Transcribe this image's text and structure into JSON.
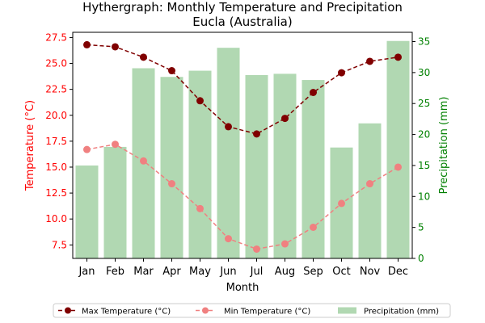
{
  "chart_data": {
    "type": "bar",
    "title": "Hythergraph: Monthly Temperature and Precipitation",
    "subtitle": "Eucla (Australia)",
    "xlabel": "Month",
    "ylabel_left": "Temperature (°C)",
    "ylabel_right": "Precipitation (mm)",
    "categories": [
      "Jan",
      "Feb",
      "Mar",
      "Apr",
      "May",
      "Jun",
      "Jul",
      "Aug",
      "Sep",
      "Oct",
      "Nov",
      "Dec"
    ],
    "ylim_left": [
      6.2,
      28.0
    ],
    "ylim_right": [
      0,
      36.5
    ],
    "yticks_left": [
      "7.5",
      "10.0",
      "12.5",
      "15.0",
      "17.5",
      "20.0",
      "22.5",
      "25.0",
      "27.5"
    ],
    "yticks_right": [
      "0",
      "5",
      "10",
      "15",
      "20",
      "25",
      "30",
      "35"
    ],
    "series": [
      {
        "name": "Max Temperature (°C)",
        "kind": "line",
        "axis": "left",
        "color": "#800000",
        "values": [
          26.8,
          26.6,
          25.6,
          24.3,
          21.4,
          18.9,
          18.2,
          19.7,
          22.2,
          24.1,
          25.2,
          25.6
        ]
      },
      {
        "name": "Min Temperature (°C)",
        "kind": "line",
        "axis": "left",
        "color": "#f08080",
        "values": [
          16.7,
          17.2,
          15.6,
          13.4,
          11.0,
          8.1,
          7.1,
          7.6,
          9.2,
          11.5,
          13.4,
          15.0
        ]
      },
      {
        "name": "Precipitation (mm)",
        "kind": "bar",
        "axis": "right",
        "color": "#b1d8b2",
        "values": [
          15.0,
          18.0,
          30.7,
          29.3,
          30.3,
          34.0,
          29.6,
          29.8,
          28.8,
          17.9,
          21.8,
          35.1
        ]
      }
    ],
    "legend_position": "bottom-center",
    "colors": {
      "left_axis": "#ff0000",
      "right_axis": "#008000"
    }
  }
}
